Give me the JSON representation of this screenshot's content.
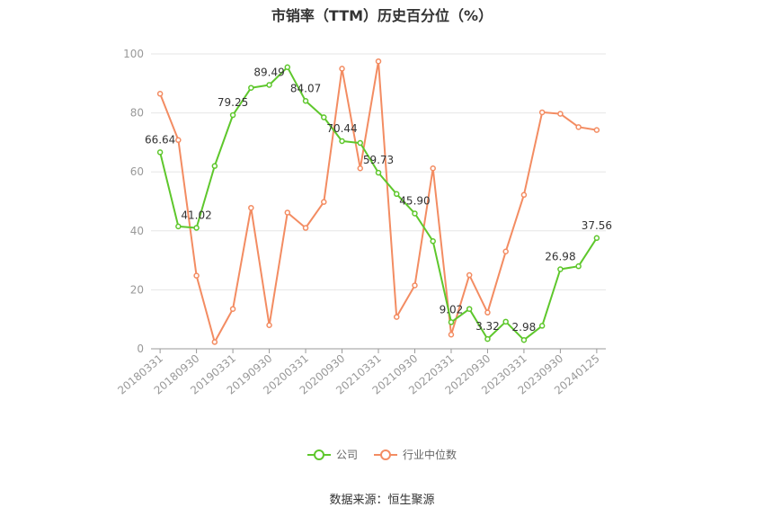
{
  "chart_data": {
    "type": "line",
    "title": "市销率（TTM）历史百分位（%）",
    "source": "数据来源：恒生聚源",
    "ylim": [
      0,
      100
    ],
    "yticks": [
      0,
      20,
      40,
      60,
      80,
      100
    ],
    "x_tick_labels": [
      "20180331",
      "20180930",
      "20190331",
      "20190930",
      "20200331",
      "20200930",
      "20210331",
      "20210930",
      "20220331",
      "20220930",
      "20230331",
      "20230930",
      "20240125"
    ],
    "grid": true,
    "legend_position": "bottom",
    "series": [
      {
        "name": "公司",
        "color": "#5ec72c",
        "values": [
          66.64,
          41.5,
          41.02,
          62.0,
          79.25,
          88.5,
          89.49,
          95.5,
          84.07,
          78.5,
          70.44,
          69.8,
          59.73,
          52.5,
          45.9,
          36.5,
          9.02,
          13.5,
          3.32,
          9.2,
          2.98,
          7.8,
          26.98,
          28.0,
          37.56
        ],
        "labels": [
          "66.64",
          "",
          "41.02",
          "",
          "79.25",
          "",
          "89.49",
          "",
          "84.07",
          "",
          "70.44",
          "",
          "59.73",
          "",
          "45.90",
          "",
          "9.02",
          "",
          "3.32",
          "",
          "2.98",
          "",
          "26.98",
          "",
          "37.56"
        ]
      },
      {
        "name": "行业中位数",
        "color": "#f38c62",
        "values": [
          86.5,
          70.8,
          24.8,
          2.3,
          13.5,
          47.8,
          8.0,
          46.2,
          41.0,
          49.8,
          95.0,
          61.2,
          97.5,
          10.8,
          21.5,
          61.2,
          4.8,
          25.0,
          12.3,
          33.0,
          52.2,
          80.2,
          79.7,
          75.2,
          74.2
        ],
        "labels": []
      }
    ]
  }
}
